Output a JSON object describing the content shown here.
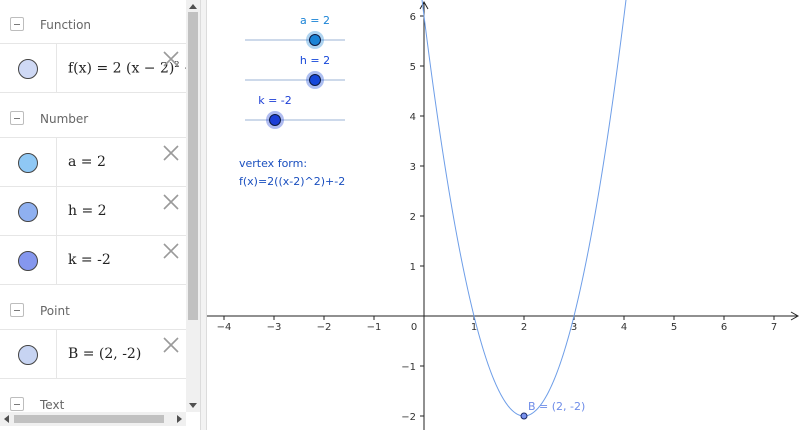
{
  "algebra": {
    "groups": {
      "function": "Function",
      "number": "Number",
      "point": "Point",
      "text": "Text"
    },
    "rows": {
      "f": {
        "text_before": "f(x)  =  2 (x − 2)",
        "exponent": "2",
        "text_after": " − 2",
        "marble_color": "#cfd9f5"
      },
      "a": {
        "text": "a  =  2",
        "marble_color": "#8fc8f5"
      },
      "h": {
        "text": "h  =  2",
        "marble_color": "#8fb0f0"
      },
      "k": {
        "text": "k  =  -2",
        "marble_color": "#8597ee"
      },
      "B": {
        "text": "B  =  (2, -2)",
        "marble_color": "#c7d4f2"
      }
    }
  },
  "graphics": {
    "sliders": [
      {
        "name": "a",
        "label": "a = 2",
        "value": 2,
        "min": -5,
        "max": 5,
        "color": "#1a83d6"
      },
      {
        "name": "h",
        "label": "h = 2",
        "value": 2,
        "min": -5,
        "max": 5,
        "color": "#1547d9"
      },
      {
        "name": "k",
        "label": "k = -2",
        "value": -2,
        "min": -5,
        "max": 5,
        "color": "#1d3fd6"
      }
    ],
    "vertex_text": {
      "line1": "vertex form:",
      "line2": "f(x)=2((x-2)^2)+-2"
    },
    "point_B": {
      "label": "B = (2, -2)",
      "x": 2,
      "y": -2
    },
    "curve_color": "#6e9ee8"
  },
  "chart_data": {
    "type": "line",
    "series": [
      {
        "function": "f(x) = 2(x − 2)^2 − 2",
        "x": [
          0,
          0.5,
          1,
          1.5,
          2,
          2.5,
          3,
          3.5,
          4
        ],
        "y": [
          6,
          2.5,
          0,
          -1.5,
          -2,
          -1.5,
          0,
          2.5,
          6
        ]
      }
    ],
    "x_ticks": [
      "-4",
      "-3",
      "-2",
      "-1",
      "0",
      "1",
      "2",
      "3",
      "4",
      "5",
      "6",
      "7"
    ],
    "y_ticks": [
      "-2",
      "-1",
      "1",
      "2",
      "3",
      "4",
      "5",
      "6"
    ],
    "xlim": [
      -4.3,
      7.5
    ],
    "ylim": [
      -2.25,
      6.3
    ],
    "grid": false
  }
}
